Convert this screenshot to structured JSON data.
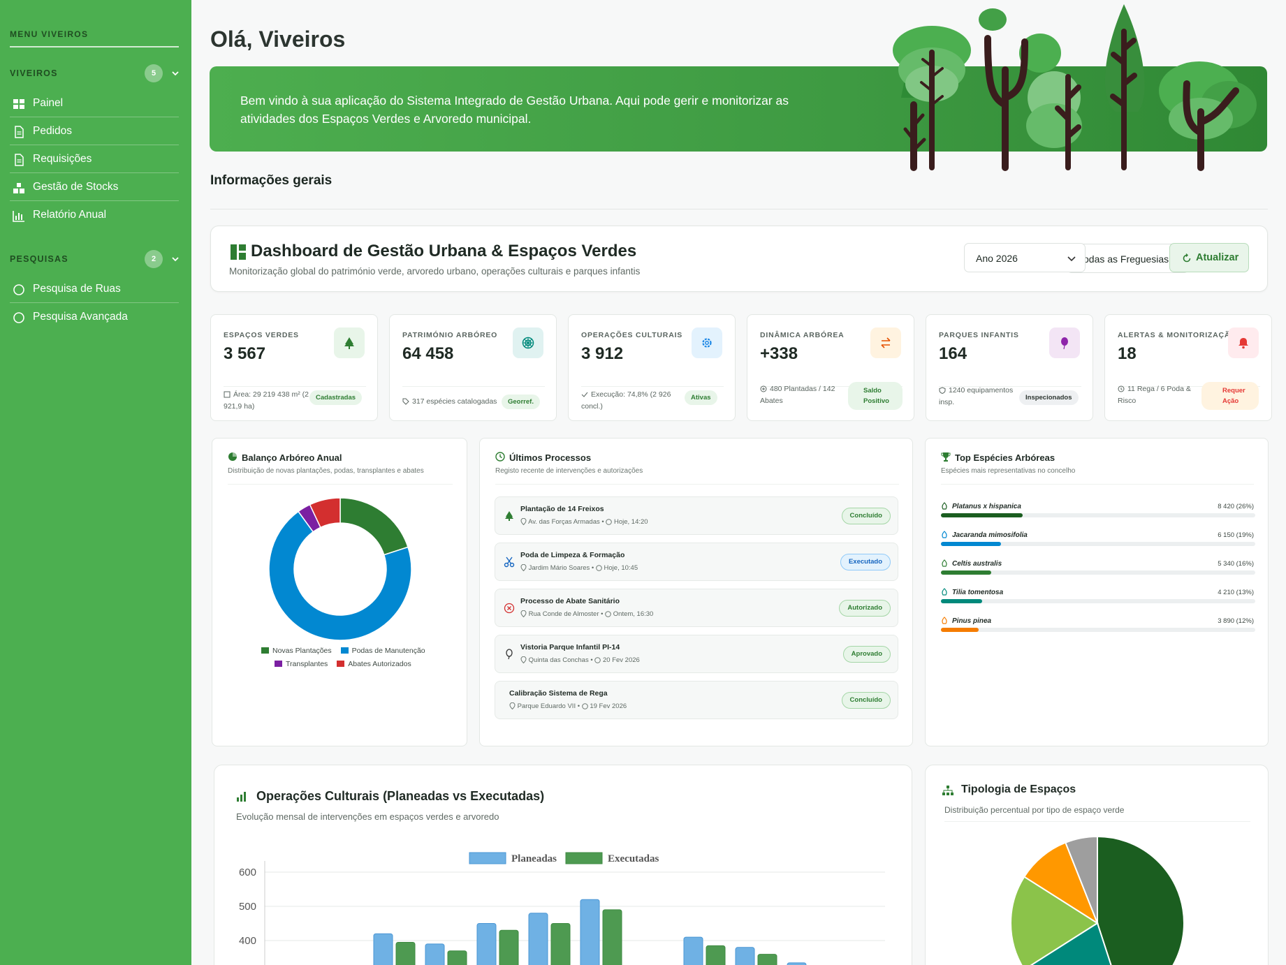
{
  "sidebar": {
    "title": "MENU VIVEIROS",
    "sections": [
      {
        "label": "VIVEIROS",
        "count": "5",
        "items": [
          "Painel",
          "Pedidos",
          "Requisições",
          "Gestão de Stocks",
          "Relatório Anual"
        ]
      },
      {
        "label": "PESQUISAS",
        "count": "2",
        "items": [
          "Pesquisa de Ruas",
          "Pesquisa Avançada"
        ]
      }
    ]
  },
  "header": {
    "greeting": "Olá, Viveiros",
    "banner_text": "Bem vindo à sua aplicação do Sistema Integrado de Gestão Urbana. Aqui pode gerir e monitorizar as atividades dos Espaços Verdes e Arvoredo municipal."
  },
  "section_title": "Informações gerais",
  "dashboard": {
    "title": "Dashboard de Gestão Urbana & Espaços Verdes",
    "subtitle": "Monitorização global do património verde, arvoredo urbano, operações culturais e parques infantis",
    "filter_parish": "Todas as Freguesias",
    "filter_year": "Ano 2026",
    "refresh_label": "Atualizar"
  },
  "kpis": [
    {
      "label": "ESPAÇOS VERDES",
      "value": "3 567",
      "detail": "Área: 29 219 438 m² (2 921,9 ha)",
      "tag": "Cadastradas",
      "icon": "tree-icon",
      "color": "#2e7d32"
    },
    {
      "label": "PATRIMÓNIO ARBÓREO",
      "value": "64 458",
      "detail": "317 espécies catalogadas",
      "tag": "Georref.",
      "icon": "tree-ring-icon",
      "color": "#00897b"
    },
    {
      "label": "OPERAÇÕES CULTURAIS",
      "value": "3 912",
      "detail": "Execução: 74,8% (2 926 concl.)",
      "tag": "Ativas",
      "icon": "gear-icon",
      "color": "#1e88e5"
    },
    {
      "label": "DINÂMICA ARBÓREA",
      "value": "+338",
      "detail": "480 Plantadas / 142 Abates",
      "tag": "Saldo Positivo",
      "icon": "exchange-icon",
      "color": "#e65100"
    },
    {
      "label": "PARQUES INFANTIS",
      "value": "164",
      "detail": "1240 equipamentos insp.",
      "tag": "Inspecionados",
      "icon": "balloon-icon",
      "color": "#8e24aa"
    },
    {
      "label": "ALERTAS & MONITORIZAÇÃO",
      "value": "18",
      "detail": "11 Rega / 6 Poda & Risco",
      "tag": "Requer Ação",
      "icon": "bell-icon",
      "color": "#e53935"
    }
  ],
  "balance": {
    "title": "Balanço Arbóreo Anual",
    "subtitle": "Distribuição de novas plantações, podas, transplantes e abates",
    "legend": [
      "Novas Plantações",
      "Podas de Manutenção",
      "Transplantes",
      "Abates Autorizados"
    ],
    "colors": [
      "#2e7d32",
      "#0288d1",
      "#7b1fa2",
      "#d32f2f"
    ]
  },
  "processes": {
    "title": "Últimos Processos",
    "subtitle": "Registo recente de intervenções e autorizações",
    "items": [
      {
        "title": "Plantação de 14 Freixos",
        "location": "Av. das Forças Armadas",
        "time": "Hoje, 14:20",
        "status": "Concluído",
        "icon": "tree-icon"
      },
      {
        "title": "Poda de Limpeza & Formação",
        "location": "Jardim Mário Soares",
        "time": "Hoje, 10:45",
        "status": "Executado",
        "icon": "scissors-icon"
      },
      {
        "title": "Processo de Abate Sanitário",
        "location": "Rua Conde de Almoster",
        "time": "Ontem, 16:30",
        "status": "Autorizado",
        "icon": "cancel-circle-icon"
      },
      {
        "title": "Vistoria Parque Infantil PI-14",
        "location": "Quinta das Conchas",
        "time": "20 Fev 2026",
        "status": "Aprovado",
        "icon": "balloon-icon"
      },
      {
        "title": "Calibração Sistema de Rega",
        "location": "Parque Eduardo VII",
        "time": "19 Fev 2026",
        "status": "Concluído",
        "icon": ""
      }
    ]
  },
  "species": {
    "title": "Top Espécies Arbóreas",
    "subtitle": "Espécies mais representativas no concelho",
    "items": [
      {
        "name": "Platanus x hispanica",
        "value": "8 420 (26%)",
        "pct": 0.26,
        "color": "#1b5e20"
      },
      {
        "name": "Jacaranda mimosifolia",
        "value": "6 150 (19%)",
        "pct": 0.19,
        "color": "#0288d1"
      },
      {
        "name": "Celtis australis",
        "value": "5 340 (16%)",
        "pct": 0.16,
        "color": "#2e7d32"
      },
      {
        "name": "Tilia tomentosa",
        "value": "4 210 (13%)",
        "pct": 0.13,
        "color": "#00897b"
      },
      {
        "name": "Pinus pinea",
        "value": "3 890 (12%)",
        "pct": 0.12,
        "color": "#f57c00"
      }
    ]
  },
  "operations": {
    "title": "Operações Culturais (Planeadas vs Executadas)",
    "subtitle": "Evolução mensal de intervenções em espaços verdes e arvoredo"
  },
  "typology": {
    "title": "Tipologia de Espaços",
    "subtitle": "Distribuição percentual por tipo de espaço verde"
  },
  "chart_data": [
    {
      "type": "pie",
      "title": "Balanço Arbóreo Anual",
      "categories": [
        "Novas Plantações",
        "Podas de Manutenção",
        "Transplantes",
        "Abates Autorizados"
      ],
      "values": [
        20,
        70,
        3,
        7
      ]
    },
    {
      "type": "bar",
      "title": "Operações Culturais (Planeadas vs Executadas)",
      "ylim": [
        300,
        600
      ],
      "yticks": [
        600,
        500,
        400
      ],
      "series": [
        {
          "name": "Planeadas",
          "color": "#6fb1e4",
          "values": [
            null,
            null,
            420,
            390,
            450,
            480,
            520,
            null,
            410,
            380,
            335,
            null
          ]
        },
        {
          "name": "Executadas",
          "color": "#4e9a51",
          "values": [
            null,
            null,
            395,
            370,
            430,
            450,
            490,
            null,
            385,
            360,
            null,
            null
          ]
        }
      ]
    },
    {
      "type": "pie",
      "title": "Tipologia de Espaços",
      "categories": [
        "",
        "",
        "",
        "",
        ""
      ],
      "colors": [
        "#1b5e20",
        "#00897b",
        "#8bc34a",
        "#ff9800",
        "#9e9e9e"
      ],
      "values": [
        45,
        21,
        18,
        10,
        6
      ]
    }
  ]
}
